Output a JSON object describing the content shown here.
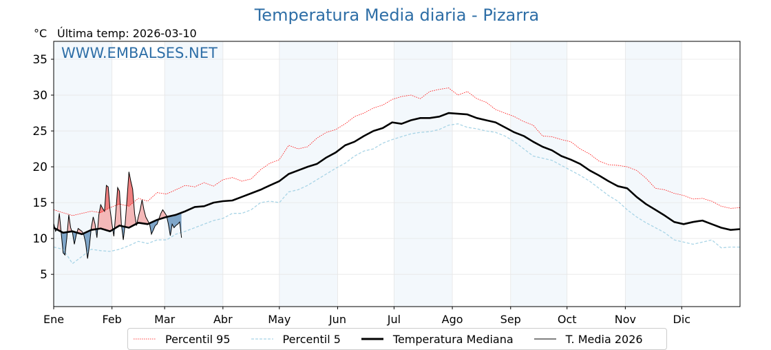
{
  "header": {
    "title": "Temperatura Media diaria - Pizarra",
    "unit": "°C",
    "last_temp": "Última temp: 2026-03-10"
  },
  "watermark": "WWW.EMBALSES.NET",
  "colors": {
    "p95": "#ff0000",
    "p5": "#a8d4e6",
    "median": "#000000",
    "current": "#000000",
    "above": "#f4b8b8",
    "above_p95": "#f08080",
    "below": "#7fa6c9",
    "band": "#f3f8fc",
    "title": "#2e6ea6"
  },
  "chart_data": {
    "type": "line",
    "title": "Temperatura Media diaria - Pizarra",
    "ylabel": "°C",
    "ylim": [
      0.5,
      37.5
    ],
    "xlim": [
      0,
      365
    ],
    "yticks": [
      5,
      10,
      15,
      20,
      25,
      30,
      35
    ],
    "xticks": [
      {
        "day": 0,
        "label": "Ene"
      },
      {
        "day": 31,
        "label": "Feb"
      },
      {
        "day": 59,
        "label": "Mar"
      },
      {
        "day": 90,
        "label": "Abr"
      },
      {
        "day": 120,
        "label": "May"
      },
      {
        "day": 151,
        "label": "Jun"
      },
      {
        "day": 181,
        "label": "Jul"
      },
      {
        "day": 212,
        "label": "Ago"
      },
      {
        "day": 243,
        "label": "Sep"
      },
      {
        "day": 273,
        "label": "Oct"
      },
      {
        "day": 304,
        "label": "Nov"
      },
      {
        "day": 334,
        "label": "Dic"
      }
    ],
    "grid": true,
    "legend_position": "bottom",
    "step_days": 5,
    "series": [
      {
        "name": "Percentil 95",
        "style": "dotted-red",
        "values": [
          14,
          13.6,
          13.2,
          13.5,
          13.8,
          13.6,
          14.3,
          14.8,
          14.5,
          15.6,
          15.2,
          16.4,
          16.2,
          16.8,
          17.4,
          17.2,
          17.8,
          17.3,
          18.2,
          18.5,
          18,
          18.3,
          19.6,
          20.5,
          21,
          23,
          22.5,
          22.8,
          24,
          24.8,
          25.2,
          26,
          27,
          27.5,
          28.2,
          28.6,
          29.4,
          29.8,
          30,
          29.5,
          30.5,
          30.8,
          31,
          30,
          30.5,
          29.5,
          29,
          28,
          27.5,
          27,
          26.3,
          25.8,
          24.3,
          24.2,
          23.8,
          23.5,
          22.5,
          21.8,
          20.8,
          20.3,
          20.2,
          20,
          19.5,
          18.4,
          17,
          16.8,
          16.3,
          16,
          15.5,
          15.6,
          15.2,
          14.5,
          14.2,
          14.3
        ]
      },
      {
        "name": "Percentil 5",
        "style": "dashed-lightblue",
        "values": [
          8.8,
          8.5,
          6.5,
          7.5,
          8.5,
          8.3,
          8.2,
          8.5,
          9,
          9.6,
          9.3,
          9.8,
          9.8,
          10.6,
          11,
          11.5,
          12,
          12.5,
          12.8,
          13.5,
          13.5,
          14,
          15,
          15.2,
          15,
          16.5,
          16.8,
          17.4,
          18.2,
          19,
          19.8,
          20.5,
          21.5,
          22.2,
          22.5,
          23.3,
          23.8,
          24.2,
          24.6,
          24.8,
          24.9,
          25.2,
          25.8,
          26,
          25.5,
          25.3,
          25,
          24.8,
          24.3,
          23.5,
          22.5,
          21.5,
          21.2,
          20.9,
          20.2,
          19.5,
          18.8,
          18,
          17,
          16,
          15.2,
          14,
          13,
          12.2,
          11.5,
          10.8,
          9.8,
          9.5,
          9.2,
          9.5,
          9.8,
          8.7,
          8.8,
          8.8
        ]
      },
      {
        "name": "Temperatura Mediana",
        "style": "thick-black",
        "values": [
          11.5,
          10.8,
          11,
          10.6,
          11.2,
          11.4,
          11,
          11.8,
          11.5,
          12.2,
          12,
          12.6,
          13,
          13.3,
          13.8,
          14.4,
          14.5,
          15,
          15.2,
          15.3,
          15.8,
          16.3,
          16.8,
          17.4,
          18,
          19,
          19.5,
          20,
          20.4,
          21.3,
          22,
          23,
          23.5,
          24.3,
          25,
          25.4,
          26.2,
          26,
          26.5,
          26.8,
          26.8,
          27,
          27.5,
          27.4,
          27.3,
          26.8,
          26.5,
          26.2,
          25.5,
          24.8,
          24.3,
          23.5,
          22.8,
          22.3,
          21.5,
          21,
          20.4,
          19.5,
          18.8,
          18,
          17.3,
          17,
          15.8,
          14.8,
          14,
          13.2,
          12.3,
          12,
          12.3,
          12.5,
          12,
          11.5,
          11.2,
          11.3
        ]
      },
      {
        "name": "T. Media 2026",
        "style": "thin-black",
        "daily": true,
        "values": [
          12.1,
          11.0,
          11.4,
          13.5,
          10.8,
          8.0,
          7.7,
          10.1,
          13.3,
          11.5,
          10.8,
          9.2,
          10.5,
          11.4,
          11.2,
          11.0,
          10.5,
          9.4,
          7.2,
          9.0,
          11.5,
          13.0,
          12.0,
          10.1,
          13.3,
          14.7,
          14.2,
          13.8,
          17.4,
          17.2,
          14.0,
          12.0,
          10.3,
          13.5,
          17.1,
          16.6,
          12.0,
          9.8,
          12.0,
          15.5,
          19.3,
          18.0,
          16.9,
          13.5,
          11.8,
          13.0,
          14.0,
          15.4,
          14.0,
          13.0,
          12.5,
          12.0,
          10.6,
          11.2,
          11.8,
          12.0,
          12.8,
          13.5,
          14.0,
          13.6,
          13.2,
          12.0,
          10.4,
          12.0,
          11.5,
          11.8,
          12.0,
          12.3,
          10.1
        ]
      }
    ]
  }
}
